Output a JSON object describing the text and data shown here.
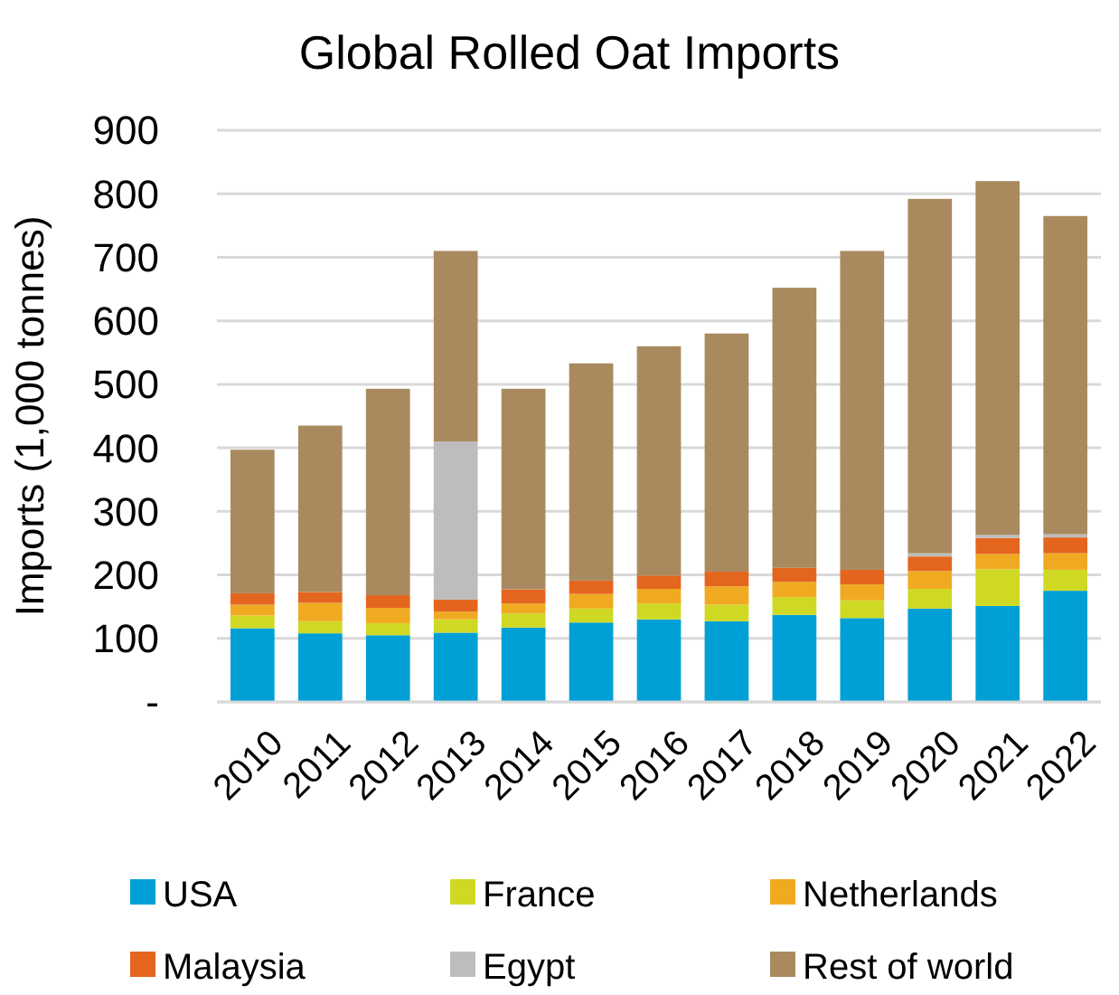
{
  "chart_data": {
    "type": "bar",
    "title": "Global Rolled Oat Imports",
    "ylabel": "Imports (1,000 tonnes)",
    "stacked": true,
    "grid": "y",
    "legend": "bottom",
    "categories": [
      "2010",
      "2011",
      "2012",
      "2013",
      "2014",
      "2015",
      "2016",
      "2017",
      "2018",
      "2019",
      "2020",
      "2021",
      "2022"
    ],
    "ylim": [
      0,
      900
    ],
    "yticks": [
      {
        "value": 0,
        "label": "-"
      },
      100,
      200,
      300,
      400,
      500,
      600,
      700,
      800,
      900
    ],
    "series": [
      {
        "name": "USA",
        "color": "#00a0d6",
        "values": [
          116,
          108,
          105,
          109,
          117,
          125,
          130,
          127,
          137,
          132,
          147,
          151,
          175
        ]
      },
      {
        "name": "France",
        "color": "#cfd924",
        "values": [
          20,
          19,
          19,
          21,
          22,
          22,
          25,
          26,
          28,
          28,
          31,
          58,
          33
        ]
      },
      {
        "name": "Netherlands",
        "color": "#f0aa22",
        "values": [
          17,
          29,
          24,
          12,
          16,
          23,
          23,
          29,
          24,
          25,
          28,
          24,
          26
        ]
      },
      {
        "name": "Malaysia",
        "color": "#e4661e",
        "values": [
          18,
          17,
          20,
          19,
          22,
          21,
          21,
          23,
          22,
          23,
          23,
          25,
          25
        ]
      },
      {
        "name": "Egypt",
        "color": "#bdbdbd",
        "values": [
          0,
          0,
          0,
          249,
          0,
          0,
          0,
          0,
          0,
          0,
          5,
          5,
          5
        ]
      },
      {
        "name": "Rest of world",
        "color": "#a98a5f",
        "values": [
          226,
          262,
          325,
          300,
          316,
          342,
          361,
          375,
          441,
          502,
          558,
          557,
          501
        ]
      }
    ]
  }
}
